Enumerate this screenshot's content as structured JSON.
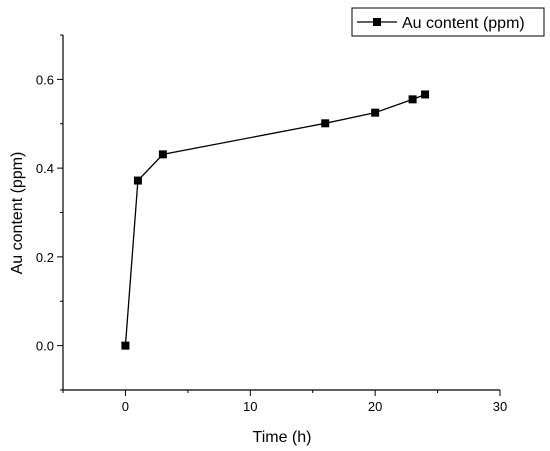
{
  "chart_data": {
    "type": "line",
    "xlabel": "Time (h)",
    "ylabel": "Au content (ppm)",
    "xlim": [
      -5,
      30
    ],
    "ylim": [
      -0.1,
      0.7
    ],
    "xticks": [
      0,
      10,
      20,
      30
    ],
    "yticks": [
      0.0,
      0.2,
      0.4,
      0.6
    ],
    "xtick_labels": [
      "0",
      "10",
      "20",
      "30"
    ],
    "ytick_labels": [
      "0.0",
      "0.2",
      "0.4",
      "0.6"
    ],
    "legend_position": "top-right",
    "series": [
      {
        "name": "Au content (ppm)",
        "color": "#000000",
        "marker": "square",
        "x": [
          0,
          1,
          3,
          16,
          20,
          23,
          24
        ],
        "y": [
          0.0,
          0.372,
          0.431,
          0.501,
          0.525,
          0.555,
          0.566
        ]
      }
    ]
  }
}
